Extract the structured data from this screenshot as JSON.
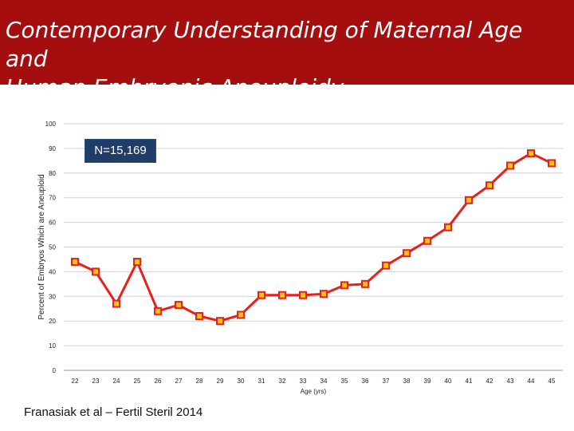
{
  "slide": {
    "title_line1": "Contemporary Understanding of Maternal Age and",
    "title_line2": "Human Embryonic Aneuploidy",
    "n_label": "N=15,169",
    "citation": "Franasiak et al – Fertil Steril 2014",
    "colors": {
      "title_bg": "#a50e0f",
      "line": "#e8201a",
      "marker_fill": "#f5c518",
      "nbox_bg": "#1f3d66"
    }
  },
  "chart_data": {
    "type": "line",
    "title": "",
    "xlabel": "Age (yrs)",
    "ylabel": "Percent of Embryos Which are Aneuploid",
    "ylim": [
      0,
      100
    ],
    "yticks": [
      0,
      10,
      20,
      30,
      40,
      50,
      60,
      70,
      80,
      90,
      100
    ],
    "grid": true,
    "categories": [
      "22",
      "23",
      "24",
      "25",
      "26",
      "27",
      "28",
      "29",
      "30",
      "31",
      "32",
      "33",
      "34",
      "35",
      "36",
      "37",
      "38",
      "39",
      "40",
      "41",
      "42",
      "43",
      "44",
      "45"
    ],
    "series": [
      {
        "name": "Aneuploidy",
        "values": [
          44,
          40,
          27,
          44,
          24,
          26.5,
          22,
          20,
          22.5,
          30.5,
          30.5,
          30.5,
          31,
          34.5,
          35,
          42.5,
          47.5,
          52.5,
          58,
          69,
          75,
          83,
          88,
          84
        ]
      }
    ]
  }
}
